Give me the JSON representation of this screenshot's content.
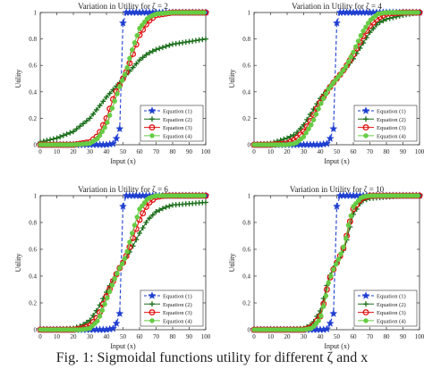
{
  "caption": "Fig. 1: Sigmoidal functions utility for different ζ and x",
  "legend_entries": [
    "Equation (1)",
    "Equation (2)",
    "Equation (3)",
    "Equation (4)"
  ],
  "series_colors": {
    "Equation (1)": "#1f3fd0",
    "Equation (2)": "#1a6e1a",
    "Equation (3)": "#e01010",
    "Equation (4)": "#66cc44"
  },
  "series_markers": {
    "Equation (1)": "star",
    "Equation (2)": "plus",
    "Equation (3)": "circle",
    "Equation (4)": "dot"
  },
  "chart_data": [
    {
      "type": "line",
      "title": "Variation in Utility for ζ = 2",
      "xlabel": "Input (x)",
      "ylabel": "Utility",
      "xlim": [
        0,
        100
      ],
      "ylim": [
        0,
        1
      ],
      "xticks": [
        0,
        10,
        20,
        30,
        40,
        50,
        60,
        70,
        80,
        90,
        100
      ],
      "yticks": [
        0,
        0.2,
        0.4,
        0.6,
        0.8,
        1
      ],
      "legend_position": "bottom-right",
      "grid": false,
      "x": [
        0,
        10,
        20,
        30,
        35,
        40,
        45,
        48,
        50,
        52,
        55,
        60,
        65,
        70,
        80,
        90,
        100
      ],
      "series": [
        {
          "name": "Equation (1)",
          "values": [
            0,
            0,
            0,
            0,
            0,
            0,
            0.01,
            0.12,
            0.92,
            1,
            1,
            1,
            1,
            1,
            1,
            1,
            1
          ]
        },
        {
          "name": "Equation (2)",
          "values": [
            0.02,
            0.05,
            0.1,
            0.2,
            0.28,
            0.36,
            0.43,
            0.47,
            0.5,
            0.53,
            0.57,
            0.64,
            0.69,
            0.72,
            0.76,
            0.78,
            0.8
          ]
        },
        {
          "name": "Equation (3)",
          "values": [
            0,
            0,
            0,
            0.02,
            0.07,
            0.2,
            0.38,
            0.45,
            0.5,
            0.55,
            0.65,
            0.83,
            0.93,
            0.98,
            1,
            1,
            1
          ]
        },
        {
          "name": "Equation (4)",
          "values": [
            0,
            0,
            0,
            0.01,
            0.05,
            0.15,
            0.33,
            0.44,
            0.5,
            0.56,
            0.7,
            0.88,
            0.96,
            0.99,
            1,
            1,
            1
          ]
        }
      ]
    },
    {
      "type": "line",
      "title": "Variation in Utility for ζ = 4",
      "xlabel": "Input (x)",
      "ylabel": "Utility",
      "xlim": [
        0,
        100
      ],
      "ylim": [
        0,
        1
      ],
      "xticks": [
        0,
        10,
        20,
        30,
        40,
        50,
        60,
        70,
        80,
        90,
        100
      ],
      "yticks": [
        0,
        0.2,
        0.4,
        0.6,
        0.8,
        1
      ],
      "legend_position": "bottom-right",
      "grid": false,
      "x": [
        0,
        10,
        20,
        25,
        30,
        35,
        40,
        45,
        48,
        50,
        52,
        55,
        60,
        65,
        70,
        75,
        80,
        90,
        100
      ],
      "series": [
        {
          "name": "Equation (1)",
          "values": [
            0,
            0,
            0,
            0,
            0,
            0,
            0,
            0.01,
            0.12,
            0.92,
            1,
            1,
            1,
            1,
            1,
            1,
            1,
            1,
            1
          ]
        },
        {
          "name": "Equation (2)",
          "values": [
            0,
            0.01,
            0.05,
            0.08,
            0.15,
            0.25,
            0.35,
            0.43,
            0.47,
            0.5,
            0.53,
            0.57,
            0.65,
            0.75,
            0.85,
            0.92,
            0.95,
            0.98,
            1
          ]
        },
        {
          "name": "Equation (3)",
          "values": [
            0,
            0,
            0.01,
            0.04,
            0.1,
            0.2,
            0.32,
            0.42,
            0.47,
            0.5,
            0.53,
            0.58,
            0.68,
            0.8,
            0.9,
            0.96,
            0.99,
            1,
            1
          ]
        },
        {
          "name": "Equation (4)",
          "values": [
            0,
            0,
            0,
            0.01,
            0.06,
            0.16,
            0.3,
            0.42,
            0.47,
            0.5,
            0.53,
            0.58,
            0.7,
            0.84,
            0.94,
            0.99,
            1,
            1,
            1
          ]
        }
      ]
    },
    {
      "type": "line",
      "title": "Variation in Utility for ζ = 6",
      "xlabel": "Input (x)",
      "ylabel": "Utility",
      "xlim": [
        0,
        100
      ],
      "ylim": [
        0,
        1
      ],
      "xticks": [
        0,
        10,
        20,
        30,
        40,
        50,
        60,
        70,
        80,
        90,
        100
      ],
      "yticks": [
        0,
        0.2,
        0.4,
        0.6,
        0.8,
        1
      ],
      "legend_position": "bottom-right",
      "grid": false,
      "x": [
        0,
        10,
        20,
        25,
        30,
        35,
        40,
        45,
        48,
        50,
        52,
        55,
        60,
        65,
        70,
        75,
        80,
        90,
        100
      ],
      "series": [
        {
          "name": "Equation (1)",
          "values": [
            0,
            0,
            0,
            0,
            0,
            0,
            0,
            0.01,
            0.12,
            0.92,
            1,
            1,
            1,
            1,
            1,
            1,
            1,
            1,
            1
          ]
        },
        {
          "name": "Equation (2)",
          "values": [
            0,
            0,
            0.01,
            0.03,
            0.07,
            0.16,
            0.28,
            0.4,
            0.46,
            0.5,
            0.54,
            0.6,
            0.72,
            0.82,
            0.88,
            0.91,
            0.93,
            0.94,
            0.95
          ]
        },
        {
          "name": "Equation (3)",
          "values": [
            0,
            0,
            0,
            0.01,
            0.03,
            0.1,
            0.25,
            0.39,
            0.46,
            0.5,
            0.55,
            0.65,
            0.82,
            0.94,
            0.99,
            1,
            1,
            1,
            1
          ]
        },
        {
          "name": "Equation (4)",
          "values": [
            0,
            0,
            0,
            0,
            0.01,
            0.07,
            0.22,
            0.38,
            0.46,
            0.5,
            0.56,
            0.7,
            0.9,
            0.98,
            1,
            1,
            1,
            1,
            1
          ]
        }
      ]
    },
    {
      "type": "line",
      "title": "Variation in Utility for ζ = 10",
      "xlabel": "Input (x)",
      "ylabel": "Utility",
      "xlim": [
        0,
        100
      ],
      "ylim": [
        0,
        1
      ],
      "xticks": [
        0,
        10,
        20,
        30,
        40,
        50,
        60,
        70,
        80,
        90,
        100
      ],
      "yticks": [
        0,
        0.2,
        0.4,
        0.6,
        0.8,
        1
      ],
      "legend_position": "bottom-right",
      "grid": false,
      "x": [
        0,
        10,
        20,
        30,
        35,
        40,
        43,
        45,
        48,
        50,
        52,
        55,
        57,
        60,
        65,
        70,
        80,
        90,
        100
      ],
      "series": [
        {
          "name": "Equation (1)",
          "values": [
            0,
            0,
            0,
            0,
            0,
            0,
            0,
            0.01,
            0.12,
            0.92,
            1,
            1,
            1,
            1,
            1,
            1,
            1,
            1,
            1
          ]
        },
        {
          "name": "Equation (2)",
          "values": [
            0,
            0,
            0,
            0.01,
            0.04,
            0.14,
            0.28,
            0.38,
            0.46,
            0.5,
            0.54,
            0.62,
            0.72,
            0.86,
            0.96,
            0.98,
            0.99,
            1,
            1
          ]
        },
        {
          "name": "Equation (3)",
          "values": [
            0,
            0,
            0,
            0,
            0.02,
            0.1,
            0.24,
            0.36,
            0.45,
            0.5,
            0.55,
            0.64,
            0.76,
            0.9,
            0.98,
            1,
            1,
            1,
            1
          ]
        },
        {
          "name": "Equation (4)",
          "values": [
            0,
            0,
            0,
            0,
            0.01,
            0.08,
            0.22,
            0.35,
            0.45,
            0.5,
            0.55,
            0.65,
            0.78,
            0.92,
            0.99,
            1,
            1,
            1,
            1
          ]
        }
      ]
    }
  ]
}
